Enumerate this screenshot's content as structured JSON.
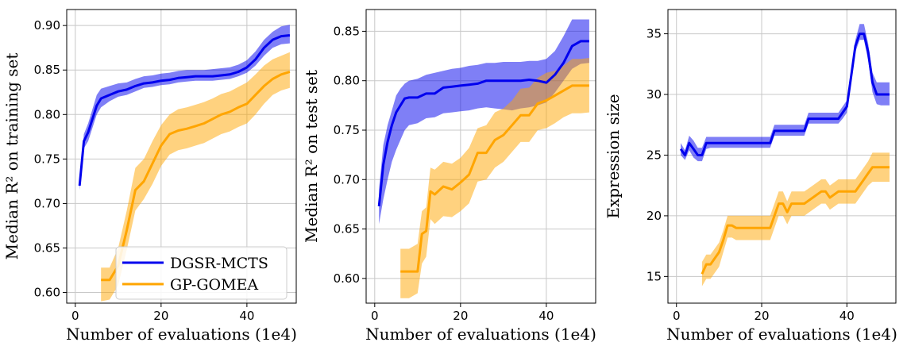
{
  "colors": {
    "dgsr": "#0000ee",
    "gp": "#ffa500",
    "grid": "#c8c8c8"
  },
  "legend": {
    "items": [
      "DGSR-MCTS",
      "GP-GOMEA"
    ]
  },
  "chart_data": [
    {
      "type": "line",
      "xlabel": "Number of evaluations (1e4)",
      "ylabel": "Median R² on training set",
      "xlim": [
        -2,
        51.5
      ],
      "ylim": [
        0.588,
        0.918
      ],
      "xticks": [
        0,
        20,
        40
      ],
      "yticks": [
        0.6,
        0.65,
        0.7,
        0.75,
        0.8,
        0.85,
        0.9
      ],
      "ytick_labels": [
        "0.60",
        "0.65",
        "0.70",
        "0.75",
        "0.80",
        "0.85",
        "0.90"
      ],
      "grid": true,
      "legend": "lower-left",
      "series": [
        {
          "name": "DGSR-MCTS",
          "color": "#0000ee",
          "x": [
            1,
            2,
            3,
            4,
            5,
            6,
            8,
            10,
            12,
            14,
            16,
            18,
            20,
            22,
            24,
            26,
            28,
            30,
            32,
            34,
            36,
            38,
            40,
            42,
            44,
            46,
            48,
            50
          ],
          "y": [
            0.72,
            0.77,
            0.78,
            0.795,
            0.81,
            0.818,
            0.822,
            0.826,
            0.828,
            0.832,
            0.835,
            0.836,
            0.838,
            0.839,
            0.841,
            0.842,
            0.843,
            0.843,
            0.843,
            0.844,
            0.845,
            0.848,
            0.853,
            0.862,
            0.875,
            0.884,
            0.888,
            0.889
          ],
          "lower": [
            0.715,
            0.762,
            0.77,
            0.785,
            0.8,
            0.808,
            0.815,
            0.82,
            0.822,
            0.826,
            0.83,
            0.831,
            0.833,
            0.834,
            0.836,
            0.837,
            0.838,
            0.838,
            0.838,
            0.839,
            0.84,
            0.843,
            0.847,
            0.855,
            0.866,
            0.875,
            0.879,
            0.88
          ],
          "upper": [
            0.725,
            0.778,
            0.79,
            0.806,
            0.822,
            0.829,
            0.832,
            0.835,
            0.836,
            0.84,
            0.843,
            0.844,
            0.846,
            0.847,
            0.849,
            0.85,
            0.85,
            0.85,
            0.851,
            0.852,
            0.853,
            0.856,
            0.861,
            0.871,
            0.884,
            0.893,
            0.899,
            0.901
          ]
        },
        {
          "name": "GP-GOMEA",
          "color": "#ffa500",
          "x": [
            6,
            8,
            10,
            12,
            14,
            16,
            18,
            20,
            22,
            24,
            26,
            28,
            30,
            32,
            34,
            36,
            38,
            40,
            42,
            44,
            46,
            48,
            50
          ],
          "y": [
            0.614,
            0.614,
            0.63,
            0.67,
            0.715,
            0.725,
            0.745,
            0.765,
            0.778,
            0.782,
            0.784,
            0.787,
            0.79,
            0.795,
            0.8,
            0.803,
            0.808,
            0.812,
            0.822,
            0.832,
            0.84,
            0.845,
            0.848
          ],
          "lower": [
            0.59,
            0.592,
            0.608,
            0.648,
            0.692,
            0.705,
            0.722,
            0.742,
            0.755,
            0.76,
            0.762,
            0.765,
            0.768,
            0.773,
            0.778,
            0.781,
            0.786,
            0.79,
            0.8,
            0.812,
            0.822,
            0.827,
            0.83
          ],
          "upper": [
            0.628,
            0.628,
            0.65,
            0.692,
            0.74,
            0.75,
            0.77,
            0.788,
            0.8,
            0.806,
            0.808,
            0.811,
            0.814,
            0.818,
            0.823,
            0.826,
            0.831,
            0.836,
            0.845,
            0.855,
            0.862,
            0.866,
            0.87
          ]
        }
      ]
    },
    {
      "type": "line",
      "xlabel": "Number of evaluations (1e4)",
      "ylabel": "Median R² on test set",
      "xlim": [
        -2,
        51.5
      ],
      "ylim": [
        0.575,
        0.872
      ],
      "xticks": [
        0,
        20,
        40
      ],
      "yticks": [
        0.6,
        0.65,
        0.7,
        0.75,
        0.8,
        0.85
      ],
      "ytick_labels": [
        "0.60",
        "0.65",
        "0.70",
        "0.75",
        "0.80",
        "0.85"
      ],
      "grid": true,
      "series": [
        {
          "name": "DGSR-MCTS",
          "color": "#0000ee",
          "x": [
            1,
            2,
            3,
            4,
            5,
            6,
            7,
            8,
            10,
            12,
            14,
            16,
            18,
            20,
            22,
            24,
            26,
            28,
            30,
            32,
            34,
            36,
            38,
            40,
            42,
            44,
            46,
            48,
            50
          ],
          "y": [
            0.673,
            0.715,
            0.738,
            0.755,
            0.768,
            0.775,
            0.782,
            0.783,
            0.783,
            0.787,
            0.787,
            0.793,
            0.794,
            0.795,
            0.796,
            0.797,
            0.8,
            0.8,
            0.8,
            0.8,
            0.8,
            0.801,
            0.8,
            0.798,
            0.806,
            0.818,
            0.835,
            0.84,
            0.84
          ],
          "lower": [
            0.655,
            0.68,
            0.7,
            0.718,
            0.73,
            0.74,
            0.75,
            0.755,
            0.757,
            0.762,
            0.763,
            0.767,
            0.768,
            0.769,
            0.77,
            0.772,
            0.773,
            0.772,
            0.771,
            0.77,
            0.772,
            0.773,
            0.775,
            0.778,
            0.788,
            0.8,
            0.812,
            0.817,
            0.818
          ],
          "upper": [
            0.69,
            0.735,
            0.755,
            0.77,
            0.785,
            0.792,
            0.797,
            0.8,
            0.802,
            0.806,
            0.808,
            0.81,
            0.812,
            0.813,
            0.815,
            0.816,
            0.818,
            0.818,
            0.819,
            0.819,
            0.819,
            0.82,
            0.82,
            0.822,
            0.83,
            0.845,
            0.862,
            0.862,
            0.862
          ]
        },
        {
          "name": "GP-GOMEA",
          "color": "#ffa500",
          "x": [
            6,
            8,
            10,
            11,
            12,
            13,
            14,
            16,
            18,
            20,
            22,
            24,
            26,
            28,
            30,
            32,
            34,
            36,
            38,
            40,
            42,
            44,
            46,
            48,
            50
          ],
          "y": [
            0.607,
            0.607,
            0.607,
            0.645,
            0.648,
            0.688,
            0.685,
            0.693,
            0.69,
            0.697,
            0.705,
            0.727,
            0.727,
            0.74,
            0.745,
            0.755,
            0.765,
            0.765,
            0.777,
            0.78,
            0.785,
            0.79,
            0.795,
            0.795,
            0.795
          ],
          "lower": [
            0.58,
            0.58,
            0.585,
            0.615,
            0.622,
            0.66,
            0.655,
            0.663,
            0.662,
            0.668,
            0.676,
            0.698,
            0.7,
            0.712,
            0.718,
            0.728,
            0.738,
            0.738,
            0.75,
            0.752,
            0.757,
            0.763,
            0.767,
            0.767,
            0.768
          ],
          "upper": [
            0.63,
            0.63,
            0.635,
            0.668,
            0.672,
            0.712,
            0.71,
            0.718,
            0.716,
            0.722,
            0.732,
            0.752,
            0.755,
            0.768,
            0.772,
            0.78,
            0.792,
            0.793,
            0.803,
            0.808,
            0.81,
            0.815,
            0.822,
            0.822,
            0.823
          ]
        }
      ]
    },
    {
      "type": "line",
      "xlabel": "Number of evaluations (1e4)",
      "ylabel": "Expression size",
      "xlim": [
        -2,
        51.5
      ],
      "ylim": [
        12.8,
        37.0
      ],
      "xticks": [
        0,
        20,
        40
      ],
      "yticks": [
        15,
        20,
        25,
        30,
        35
      ],
      "ytick_labels": [
        "15",
        "20",
        "25",
        "30",
        "35"
      ],
      "grid": true,
      "series": [
        {
          "name": "DGSR-MCTS",
          "color": "#0000ee",
          "x": [
            1,
            2,
            3,
            4,
            5,
            6,
            7,
            8,
            10,
            12,
            14,
            16,
            18,
            20,
            22,
            23,
            26,
            30,
            31,
            34,
            38,
            39,
            40,
            41,
            42,
            43,
            44,
            45,
            46,
            47,
            48,
            49,
            50
          ],
          "y": [
            25.5,
            25.0,
            26.0,
            25.5,
            25.0,
            25.0,
            26.0,
            26.0,
            26.0,
            26.0,
            26.0,
            26.0,
            26.0,
            26.0,
            26.0,
            27.0,
            27.0,
            27.0,
            28.0,
            28.0,
            28.0,
            28.5,
            29.0,
            31.5,
            34.0,
            35.0,
            35.0,
            33.5,
            31.0,
            30.0,
            30.0,
            30.0,
            30.0
          ],
          "lower": [
            25.0,
            24.6,
            25.4,
            24.8,
            24.5,
            24.5,
            25.5,
            25.6,
            25.6,
            25.6,
            25.6,
            25.6,
            25.6,
            25.6,
            25.6,
            26.6,
            26.6,
            26.6,
            27.6,
            27.6,
            27.6,
            28.0,
            28.5,
            31.0,
            33.5,
            34.5,
            34.5,
            32.8,
            30.2,
            29.2,
            29.1,
            29.1,
            29.1
          ],
          "upper": [
            26.0,
            25.4,
            26.6,
            26.2,
            25.6,
            25.6,
            26.5,
            26.5,
            26.5,
            26.5,
            26.5,
            26.5,
            26.5,
            26.5,
            26.5,
            27.5,
            27.5,
            27.5,
            28.5,
            28.5,
            28.5,
            29.0,
            29.5,
            32.0,
            34.5,
            35.8,
            35.8,
            34.2,
            31.8,
            31.0,
            31.0,
            31.0,
            31.0
          ]
        },
        {
          "name": "GP-GOMEA",
          "color": "#ffa500",
          "x": [
            6,
            7,
            8,
            10,
            11,
            12,
            13,
            14,
            16,
            18,
            20,
            22,
            23,
            24,
            25,
            26,
            27,
            28,
            30,
            32,
            34,
            35,
            36,
            38,
            40,
            42,
            44,
            45,
            46,
            48,
            50
          ],
          "y": [
            15.2,
            16.0,
            16.0,
            17.0,
            18.0,
            19.2,
            19.2,
            19.0,
            19.0,
            19.0,
            19.0,
            19.0,
            20.0,
            21.0,
            21.0,
            20.3,
            21.0,
            21.0,
            21.0,
            21.5,
            22.0,
            22.0,
            21.5,
            22.0,
            22.0,
            22.0,
            23.0,
            23.5,
            24.0,
            24.0,
            24.0
          ],
          "lower": [
            14.2,
            14.8,
            14.8,
            15.8,
            17.0,
            18.2,
            18.2,
            18.0,
            18.0,
            18.0,
            18.0,
            18.0,
            19.0,
            20.0,
            20.0,
            19.3,
            20.0,
            20.0,
            20.0,
            20.5,
            21.0,
            21.0,
            20.5,
            21.0,
            21.0,
            21.0,
            22.0,
            22.5,
            22.8,
            22.8,
            22.8
          ],
          "upper": [
            16.2,
            16.8,
            16.8,
            17.8,
            18.8,
            20.0,
            20.0,
            20.0,
            20.0,
            20.0,
            20.0,
            20.0,
            21.0,
            22.0,
            22.0,
            21.2,
            22.0,
            22.0,
            22.0,
            22.5,
            23.0,
            23.0,
            22.5,
            23.0,
            23.0,
            23.0,
            24.0,
            24.5,
            25.2,
            25.2,
            25.2
          ]
        }
      ]
    }
  ]
}
